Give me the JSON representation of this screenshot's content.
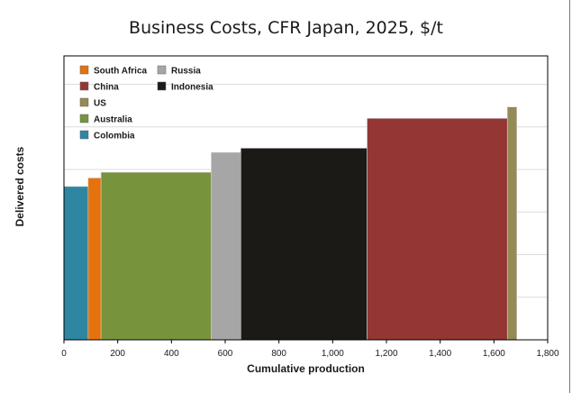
{
  "chart_data": {
    "type": "bar",
    "subtype": "cost-curve",
    "title": "Business Costs, CFR Japan, 2025, $/t",
    "xlabel": "Cumulative production",
    "ylabel": "Delivered costs",
    "xlim": [
      0,
      1800
    ],
    "ylim": [
      0,
      100
    ],
    "x_ticks": [
      "0",
      "200",
      "400",
      "600",
      "800",
      "1,000",
      "1,200",
      "1,400",
      "1,600",
      "1,800"
    ],
    "grid": true,
    "legend_position": "top-left",
    "series": [
      {
        "name": "Colombia",
        "x_start": 0,
        "x_end": 90,
        "value": 54,
        "color": "#2e86a3"
      },
      {
        "name": "South Africa",
        "x_start": 90,
        "x_end": 138,
        "value": 57,
        "color": "#e6720e"
      },
      {
        "name": "Australia",
        "x_start": 138,
        "x_end": 548,
        "value": 59,
        "color": "#77943c"
      },
      {
        "name": "Russia",
        "x_start": 548,
        "x_end": 658,
        "value": 66,
        "color": "#a6a6a6"
      },
      {
        "name": "Indonesia",
        "x_start": 658,
        "x_end": 1128,
        "value": 67.5,
        "color": "#1c1a17"
      },
      {
        "name": "China",
        "x_start": 1128,
        "x_end": 1650,
        "value": 78,
        "color": "#943634"
      },
      {
        "name": "US",
        "x_start": 1650,
        "x_end": 1685,
        "value": 82,
        "color": "#948a54"
      }
    ],
    "legend": [
      {
        "name": "South Africa",
        "color": "#e6720e"
      },
      {
        "name": "China",
        "color": "#943634"
      },
      {
        "name": "US",
        "color": "#948a54"
      },
      {
        "name": "Australia",
        "color": "#77943c"
      },
      {
        "name": "Colombia",
        "color": "#2e86a3"
      },
      {
        "name": "Russia",
        "color": "#a6a6a6"
      },
      {
        "name": "Indonesia",
        "color": "#1c1a17"
      }
    ]
  }
}
